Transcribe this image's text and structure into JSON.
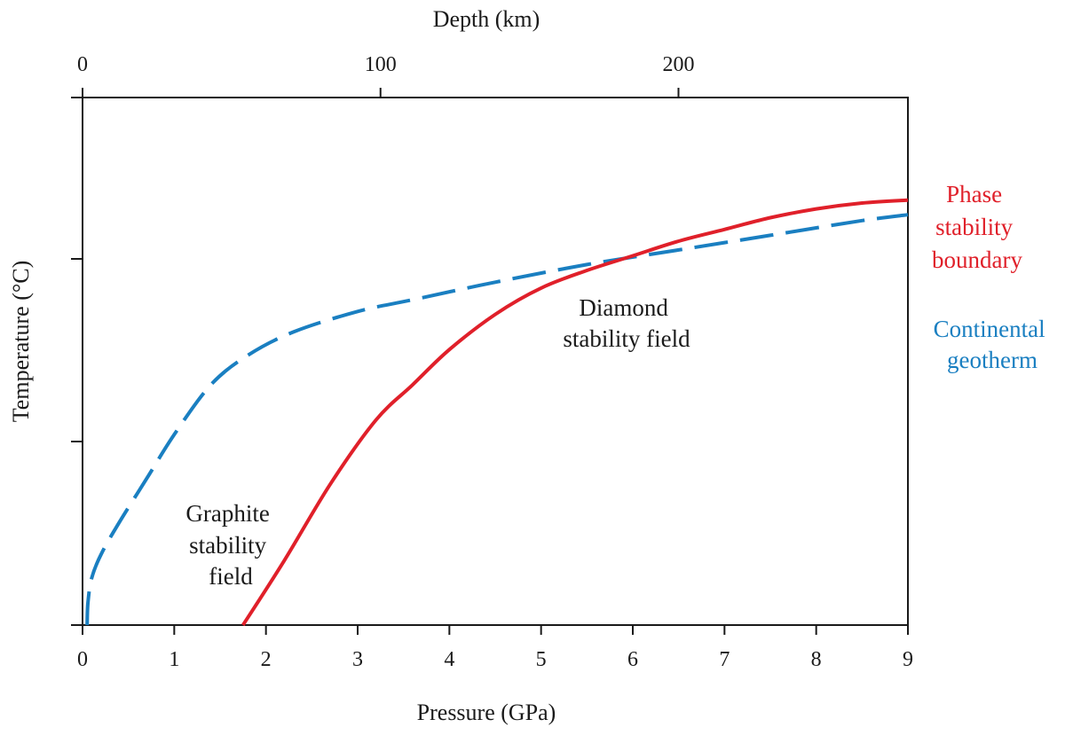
{
  "chart_data": {
    "type": "line",
    "xlabel": "Pressure (GPa)",
    "ylabel": "Temperature (°C)",
    "x2label": "Depth (km)",
    "xlim": [
      0,
      9
    ],
    "x_ticks": [
      0,
      1,
      2,
      3,
      4,
      5,
      6,
      7,
      8,
      9
    ],
    "x2lim": [
      0,
      277
    ],
    "x2_ticks": [
      0,
      100,
      200
    ],
    "y_tick_count": 3,
    "y_tick_labels_shown": false,
    "grid": false,
    "series": [
      {
        "name": "Phase stability boundary",
        "color": "#e0202a",
        "style": "solid",
        "x": [
          1.75,
          2.2,
          2.7,
          3.2,
          3.6,
          4.0,
          4.5,
          5.0,
          5.5,
          6.0,
          6.5,
          7.0,
          7.5,
          8.0,
          8.5,
          9.0
        ],
        "y": [
          0.0,
          0.22,
          0.48,
          0.7,
          0.82,
          0.94,
          1.06,
          1.15,
          1.21,
          1.26,
          1.31,
          1.35,
          1.39,
          1.42,
          1.44,
          1.45
        ]
      },
      {
        "name": "Continental geotherm",
        "color": "#1a7fc1",
        "style": "dashed",
        "x": [
          0.05,
          0.06,
          0.1,
          0.2,
          0.4,
          0.7,
          1.0,
          1.4,
          1.8,
          2.3,
          3.0,
          3.6,
          4.5,
          5.5,
          6.5,
          7.5,
          8.5,
          9.0
        ],
        "y": [
          0.0,
          0.08,
          0.16,
          0.24,
          0.35,
          0.5,
          0.65,
          0.82,
          0.92,
          1.0,
          1.07,
          1.11,
          1.17,
          1.23,
          1.28,
          1.33,
          1.38,
          1.4
        ]
      }
    ],
    "annotations": [
      {
        "lines": [
          "Graphite",
          "stability",
          "field"
        ],
        "color": "#1a1a1a"
      },
      {
        "lines": [
          "Diamond",
          "stability field"
        ],
        "color": "#1a1a1a"
      },
      {
        "lines": [
          "Phase",
          "stability",
          "boundary"
        ],
        "color": "#e0202a"
      },
      {
        "lines": [
          "Continental",
          "geotherm"
        ],
        "color": "#1a7fc1"
      }
    ]
  }
}
